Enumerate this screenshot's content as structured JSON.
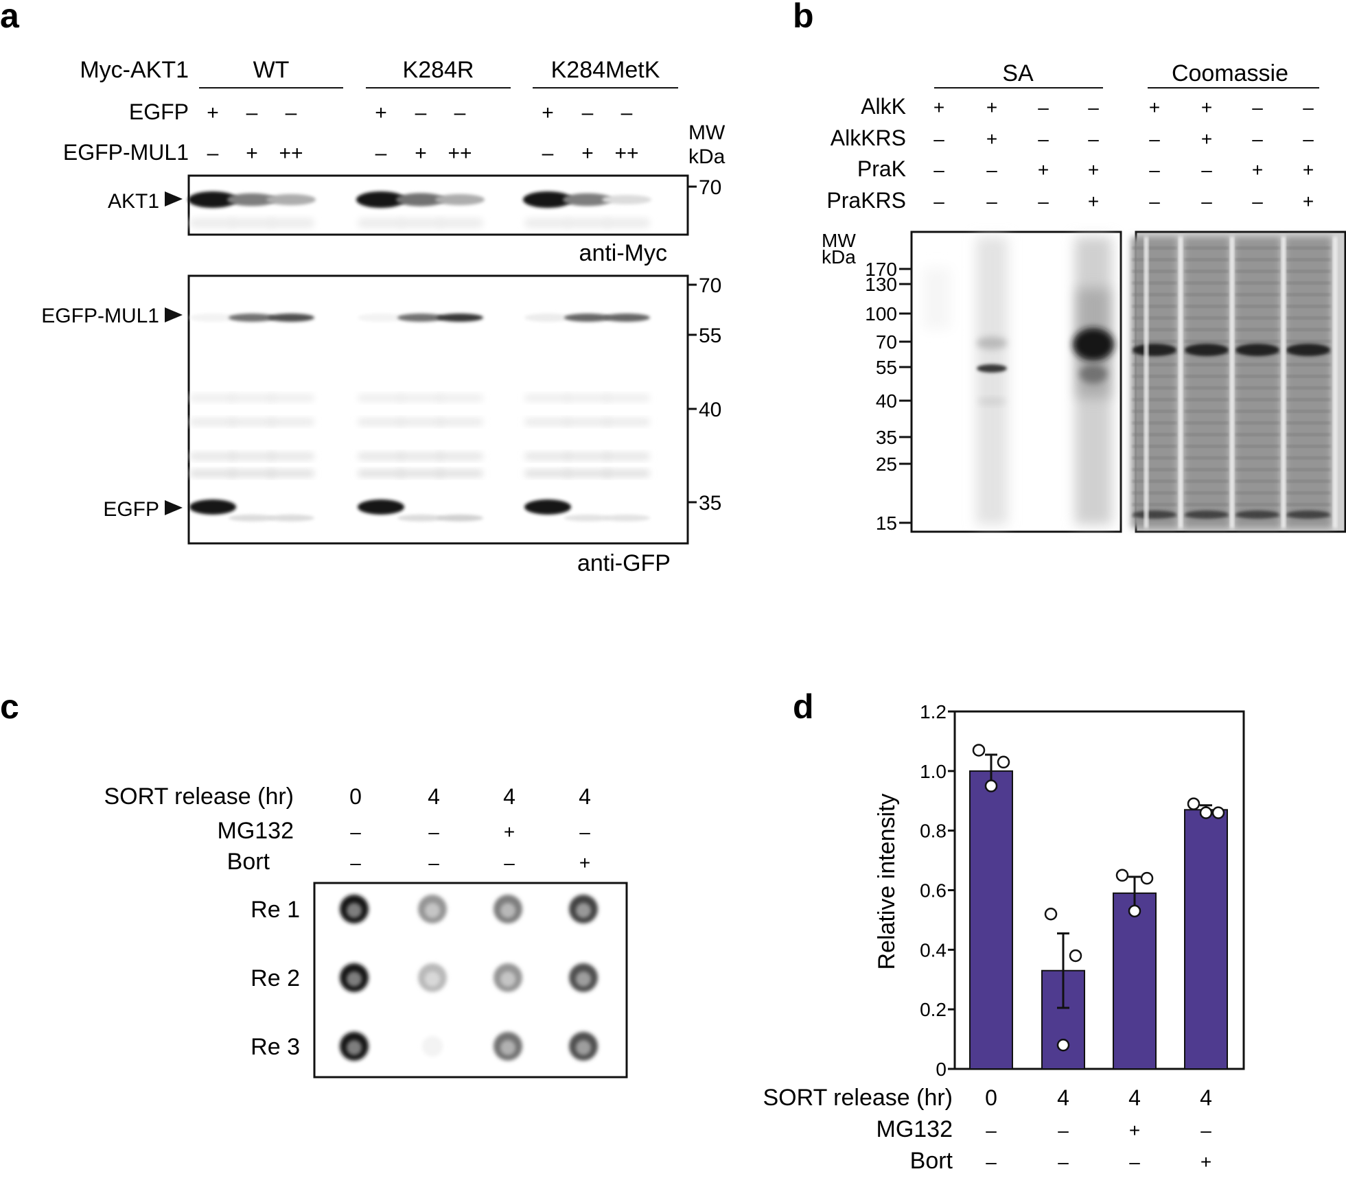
{
  "panels": {
    "a": "a",
    "b": "b",
    "c": "c",
    "d": "d"
  },
  "panel_a": {
    "construct_label": "Myc-AKT1",
    "groups": [
      "WT",
      "K284R",
      "K284MetK"
    ],
    "row_labels": [
      "EGFP",
      "EGFP-MUL1"
    ],
    "egfp": [
      "+",
      "–",
      "–",
      "+",
      "–",
      "–",
      "+",
      "–",
      "–"
    ],
    "mul1": [
      "–",
      "+",
      "++",
      "–",
      "+",
      "++",
      "–",
      "+",
      "++"
    ],
    "mw_title": [
      "MW",
      "kDa"
    ],
    "myc_blot": {
      "band_label": "AKT1",
      "antibody": "anti-Myc",
      "mw_markers": [
        "70"
      ],
      "band_intensity": [
        1.0,
        0.55,
        0.35,
        1.0,
        0.6,
        0.35,
        1.0,
        0.55,
        0.15
      ]
    },
    "gfp_blot": {
      "band_labels": [
        "EGFP-MUL1",
        "EGFP"
      ],
      "antibody": "anti-GFP",
      "mw_markers": [
        "70",
        "55",
        "40",
        "35"
      ],
      "mul1_band_intensity": [
        0.05,
        0.6,
        0.75,
        0.05,
        0.6,
        0.85,
        0.08,
        0.65,
        0.65
      ],
      "egfp_band_intensity": [
        1.0,
        0.15,
        0.15,
        1.0,
        0.15,
        0.2,
        1.0,
        0.12,
        0.12
      ]
    }
  },
  "panel_b": {
    "sections": [
      "SA",
      "Coomassie"
    ],
    "row_labels": [
      "AlkK",
      "AlkKRS",
      "PraK",
      "PraKRS"
    ],
    "signs": [
      [
        "+",
        "+",
        "–",
        "–",
        "+",
        "+",
        "–",
        "–"
      ],
      [
        "–",
        "+",
        "–",
        "–",
        "–",
        "+",
        "–",
        "–"
      ],
      [
        "–",
        "–",
        "+",
        "+",
        "–",
        "–",
        "+",
        "+"
      ],
      [
        "–",
        "–",
        "–",
        "+",
        "–",
        "–",
        "–",
        "+"
      ]
    ],
    "mw_title": [
      "MW",
      "kDa"
    ],
    "mw_markers": [
      "170",
      "130",
      "100",
      "70",
      "55",
      "40",
      "35",
      "25",
      "15"
    ]
  },
  "panel_c": {
    "row_labels": [
      "SORT release (hr)",
      "MG132",
      "Bort"
    ],
    "columns": [
      [
        "0",
        "–",
        "–"
      ],
      [
        "4",
        "–",
        "–"
      ],
      [
        "4",
        "+",
        "–"
      ],
      [
        "4",
        "–",
        "+"
      ]
    ],
    "replicates": [
      "Re 1",
      "Re 2",
      "Re 3"
    ],
    "dot_intensity": [
      [
        1.0,
        0.45,
        0.55,
        0.8
      ],
      [
        1.0,
        0.3,
        0.45,
        0.75
      ],
      [
        1.0,
        0.03,
        0.6,
        0.75
      ]
    ]
  },
  "panel_d": {
    "row_labels": [
      "SORT release (hr)",
      "MG132",
      "Bort"
    ],
    "columns": [
      [
        "0",
        "–",
        "–"
      ],
      [
        "4",
        "–",
        "–"
      ],
      [
        "4",
        "+",
        "–"
      ],
      [
        "4",
        "–",
        "+"
      ]
    ],
    "bar_color": "#4f3b8f"
  },
  "chart_data": {
    "type": "bar",
    "title": "",
    "xlabel": "",
    "ylabel": "Relative intensity",
    "ylim": [
      0,
      1.2
    ],
    "yticks": [
      "0",
      "0.2",
      "0.4",
      "0.6",
      "0.8",
      "1.0",
      "1.2"
    ],
    "categories": [
      "0 / – / –",
      "4 / – / –",
      "4 / + / –",
      "4 / – / +"
    ],
    "values": [
      1.0,
      0.33,
      0.59,
      0.87
    ],
    "errors": [
      0.055,
      0.125,
      0.055,
      0.015
    ],
    "points": [
      [
        1.07,
        1.03,
        0.95
      ],
      [
        0.52,
        0.38,
        0.08
      ],
      [
        0.65,
        0.64,
        0.53
      ],
      [
        0.89,
        0.86,
        0.86
      ]
    ]
  }
}
